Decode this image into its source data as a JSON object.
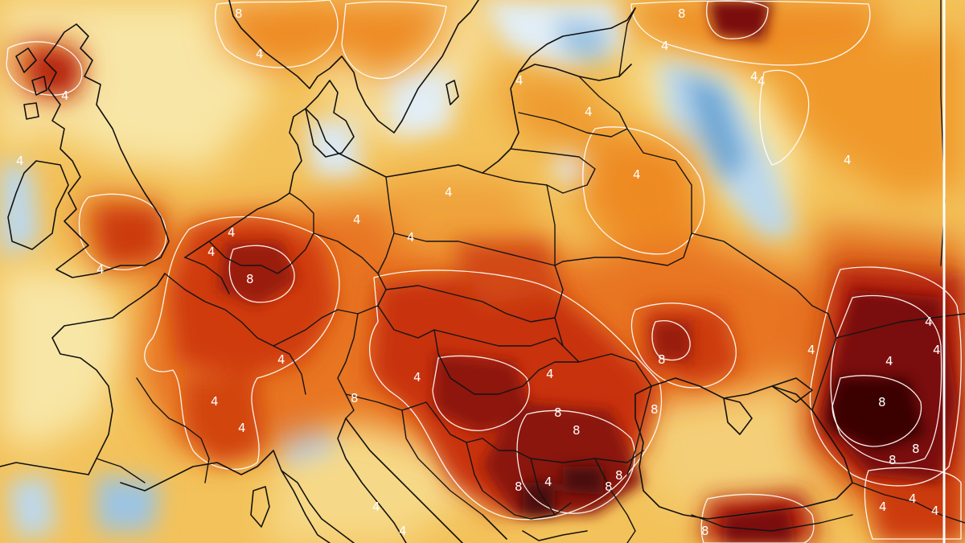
{
  "map": {
    "region": "Europe",
    "colors": {
      "background": "#f3c25a",
      "cold_strong": "#6fa9d6",
      "cold_light": "#e2eef6",
      "neutral": "#f8e6a6",
      "warm_light": "#f2b13a",
      "warm": "#ee8a24",
      "hot": "#dd4a12",
      "very_hot": "#b3200c",
      "extreme": "#7a0c0c",
      "peak": "#3a0606",
      "contour": "#ffffff",
      "borders": "#111111"
    },
    "contour_labels": [
      {
        "text": "4"
      },
      {
        "text": "8"
      },
      {
        "text": "4"
      },
      {
        "text": "8"
      },
      {
        "text": "4"
      },
      {
        "text": "4"
      },
      {
        "text": "4"
      },
      {
        "text": "4"
      },
      {
        "text": "4"
      },
      {
        "text": "4"
      },
      {
        "text": "4"
      },
      {
        "text": "4"
      },
      {
        "text": "4"
      },
      {
        "text": "8"
      },
      {
        "text": "4"
      },
      {
        "text": "4"
      },
      {
        "text": "4"
      },
      {
        "text": "4"
      },
      {
        "text": "4"
      },
      {
        "text": "4"
      },
      {
        "text": "4"
      },
      {
        "text": "4"
      },
      {
        "text": "8"
      },
      {
        "text": "4"
      },
      {
        "text": "8"
      },
      {
        "text": "8"
      },
      {
        "text": "8"
      },
      {
        "text": "8"
      },
      {
        "text": "4"
      },
      {
        "text": "4"
      },
      {
        "text": "8"
      },
      {
        "text": "8"
      },
      {
        "text": "8"
      },
      {
        "text": "4"
      },
      {
        "text": "4"
      },
      {
        "text": "8"
      },
      {
        "text": "4"
      },
      {
        "text": "8"
      },
      {
        "text": "8"
      },
      {
        "text": "4"
      },
      {
        "text": "4"
      },
      {
        "text": "4"
      },
      {
        "text": "4"
      },
      {
        "text": "8"
      },
      {
        "text": "4"
      },
      {
        "text": "4"
      }
    ]
  }
}
